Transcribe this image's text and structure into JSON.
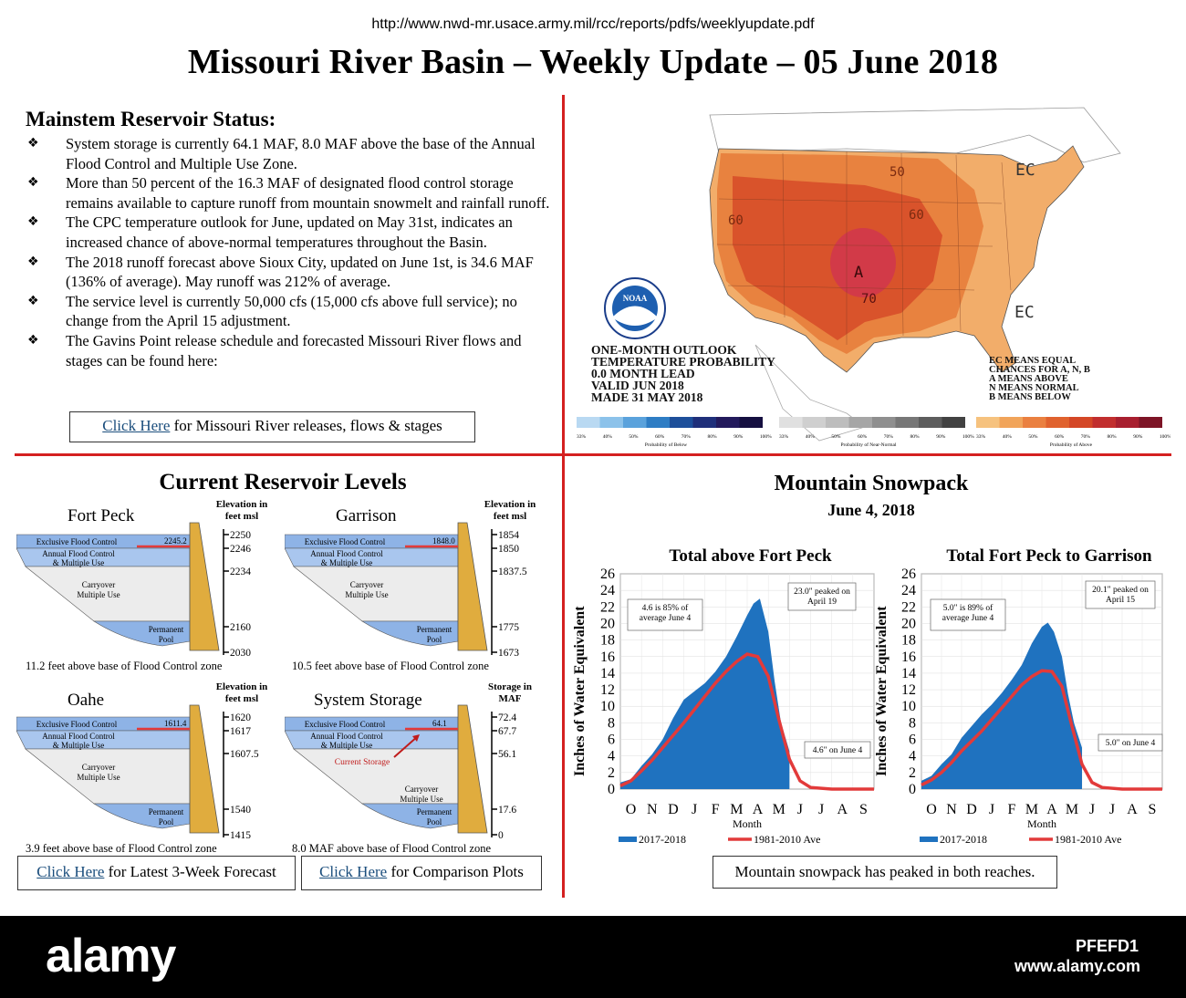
{
  "url": "http://www.nwd-mr.usace.army.mil/rcc/reports/pdfs/weeklyupdate.pdf",
  "title": "Missouri River Basin – Weekly Update – 05 June 2018",
  "mainstem": {
    "heading": "Mainstem Reservoir Status:",
    "bullets": [
      "System storage is currently 64.1 MAF, 8.0 MAF above the base of the Annual Flood Control and Multiple Use Zone.",
      "More than 50 percent of the 16.3 MAF of designated flood control storage remains available to capture runoff from mountain snowmelt and rainfall runoff.",
      "The CPC temperature outlook for June, updated on May 31st, indicates an increased chance of above-normal temperatures throughout the Basin.",
      "The 2018 runoff forecast above Sioux City, updated on June 1st, is 34.6 MAF (136% of average).  May runoff was 212% of average.",
      "The service level is currently 50,000 cfs (15,000 cfs above full service); no change from the April 15 adjustment.",
      "The Gavins Point release schedule and forecasted Missouri River flows and stages can be found here:"
    ],
    "link_text": "Click Here",
    "link_rest": " for Missouri River releases, flows & stages"
  },
  "map": {
    "outlook_lines": [
      "ONE-MONTH OUTLOOK",
      "TEMPERATURE PROBABILITY",
      "0.0 MONTH LEAD",
      "VALID JUN 2018",
      "MADE 31 MAY 2018"
    ],
    "legend_lines": [
      "EC MEANS EQUAL",
      "CHANCES FOR A, N, B",
      "A MEANS ABOVE",
      "N MEANS NORMAL",
      "B MEANS BELOW"
    ],
    "contour_labels": [
      "50",
      "60",
      "60",
      "70",
      "A",
      "EC",
      "EC"
    ],
    "noaa_label": "NOAA",
    "scale_below_title": "Probability of Below",
    "scale_normal_title": "Probability of Near-Normal",
    "scale_above_title": "Probability of Above",
    "scale_ticks": [
      "33%",
      "40%",
      "50%",
      "60%",
      "70%",
      "80%",
      "90%",
      "100%"
    ],
    "colors_below": [
      "#b9d9f2",
      "#8cc2ea",
      "#5aa2dc",
      "#2e7dc4",
      "#1d4f9a",
      "#1f2f7a",
      "#231a5c",
      "#150f40"
    ],
    "colors_normal": [
      "#e0e0e0",
      "#cfcfcf",
      "#bdbdbd",
      "#a6a6a6",
      "#8f8f8f",
      "#777777",
      "#5d5d5d",
      "#424242"
    ],
    "colors_above": [
      "#f6c27e",
      "#f1a45a",
      "#ea8040",
      "#e0622e",
      "#d44726",
      "#c12e2e",
      "#a81f2f",
      "#7d1426"
    ]
  },
  "reservoir": {
    "heading": "Current Reservoir Levels",
    "elev_header": [
      "Elevation in",
      "feet msl"
    ],
    "storage_header": [
      "Storage in",
      "MAF"
    ],
    "zone_excl": "Exclusive Flood Control",
    "zone_annual": [
      "Annual Flood Control",
      "& Multiple Use"
    ],
    "zone_carry": [
      "Carryover",
      "Multiple Use"
    ],
    "zone_perm": [
      "Permanent",
      "Pool"
    ],
    "current_storage": "Current Storage",
    "panels": [
      {
        "name": "Fort Peck",
        "ticks": [
          "2250",
          "2246",
          "2234",
          "2160",
          "2030"
        ],
        "level": "2245.2",
        "note": "11.2 feet above base of Flood Control zone"
      },
      {
        "name": "Garrison",
        "ticks": [
          "1854",
          "1850",
          "1837.5",
          "1775",
          "1673"
        ],
        "level": "1848.0",
        "note": "10.5 feet above base of Flood Control zone"
      },
      {
        "name": "Oahe",
        "ticks": [
          "1620",
          "1617",
          "1607.5",
          "1540",
          "1415"
        ],
        "level": "1611.4",
        "note": "3.9 feet above base of Flood Control zone"
      },
      {
        "name": "System Storage",
        "ticks": [
          "72.4",
          "67.7",
          "56.1",
          "17.6",
          "0"
        ],
        "level": "64.1",
        "note": "8.0 MAF above base of Flood Control zone"
      }
    ],
    "link1_text": "Click Here",
    "link1_rest": " for Latest 3-Week Forecast",
    "link2_text": "Click Here",
    "link2_rest": " for Comparison Plots"
  },
  "snowpack": {
    "heading": "Mountain Snowpack",
    "date": "June 4, 2018",
    "ylabel": "Inches of Water Equivalent",
    "xlabel": "Month",
    "legend_2018": "2017-2018",
    "legend_avg": "1981-2010 Ave",
    "footer_box": "Mountain snowpack has peaked in both reaches.",
    "color_2018": "#1f72bf",
    "color_avg": "#e23a3a"
  },
  "chart_data": [
    {
      "type": "area",
      "title": "Total above Fort Peck",
      "xlabel": "Month",
      "ylabel": "Inches of Water Equivalent",
      "categories": [
        "O",
        "N",
        "D",
        "J",
        "F",
        "M",
        "A",
        "M",
        "J",
        "J",
        "A",
        "S"
      ],
      "ylim": [
        0,
        26
      ],
      "yticks": [
        0,
        2,
        4,
        6,
        8,
        10,
        12,
        14,
        16,
        18,
        20,
        22,
        24,
        26
      ],
      "series": [
        {
          "name": "2017-2018",
          "x": [
            0,
            0.5,
            1,
            1.5,
            2,
            2.5,
            3,
            3.5,
            4,
            4.5,
            5,
            5.5,
            6,
            6.3,
            6.6,
            7,
            7.3,
            7.6,
            8
          ],
          "values": [
            0.8,
            1.2,
            2.8,
            4.2,
            6.0,
            8.6,
            10.8,
            11.8,
            12.8,
            14.2,
            16.0,
            18.4,
            21.0,
            22.4,
            23.0,
            19.0,
            13.0,
            8.0,
            4.6
          ]
        },
        {
          "name": "1981-2010 Ave",
          "x": [
            0,
            0.5,
            1,
            1.5,
            2,
            2.5,
            3,
            3.5,
            4,
            4.5,
            5,
            5.5,
            6,
            6.5,
            7,
            7.5,
            8,
            8.5,
            9,
            10,
            11,
            12
          ],
          "values": [
            0.4,
            1.0,
            2.2,
            3.5,
            5.0,
            6.5,
            8.0,
            9.6,
            11.2,
            12.8,
            14.2,
            15.4,
            16.3,
            16.0,
            13.6,
            8.4,
            3.6,
            1.0,
            0.2,
            0,
            0,
            0
          ]
        }
      ],
      "annotations": [
        "4.6 is 85% of average June 4",
        "23.0\" peaked on April 19",
        "4.6\" on June 4"
      ]
    },
    {
      "type": "area",
      "title": "Total Fort Peck to Garrison",
      "xlabel": "Month",
      "ylabel": "Inches of Water Equivalent",
      "categories": [
        "O",
        "N",
        "D",
        "J",
        "F",
        "M",
        "A",
        "M",
        "J",
        "J",
        "A",
        "S"
      ],
      "ylim": [
        0,
        26
      ],
      "yticks": [
        0,
        2,
        4,
        6,
        8,
        10,
        12,
        14,
        16,
        18,
        20,
        22,
        24,
        26
      ],
      "series": [
        {
          "name": "2017-2018",
          "x": [
            0,
            0.5,
            1,
            1.5,
            2,
            2.5,
            3,
            3.5,
            4,
            4.5,
            5,
            5.5,
            6,
            6.3,
            6.6,
            7,
            7.3,
            7.6,
            8
          ],
          "values": [
            1.0,
            1.6,
            3.0,
            4.2,
            6.2,
            7.6,
            9.0,
            10.2,
            11.6,
            13.2,
            15.0,
            17.6,
            19.6,
            20.1,
            19.0,
            16.0,
            11.5,
            8.0,
            5.0
          ]
        },
        {
          "name": "1981-2010 Ave",
          "x": [
            0,
            0.5,
            1,
            1.5,
            2,
            2.5,
            3,
            3.5,
            4,
            4.5,
            5,
            5.5,
            6,
            6.5,
            7,
            7.5,
            8,
            8.5,
            9,
            10,
            11,
            12
          ],
          "values": [
            0.5,
            1.1,
            2.0,
            3.2,
            4.6,
            5.8,
            7.0,
            8.4,
            9.8,
            11.2,
            12.6,
            13.6,
            14.3,
            14.2,
            12.4,
            7.6,
            3.0,
            0.8,
            0.2,
            0,
            0,
            0
          ]
        }
      ],
      "annotations": [
        "5.0\" is 89% of average June 4",
        "20.1\" peaked on April 15",
        "5.0\" on June 4"
      ]
    }
  ],
  "footer": {
    "logo": "alamy",
    "image_id": "PFEFD1",
    "site": "www.alamy.com"
  }
}
